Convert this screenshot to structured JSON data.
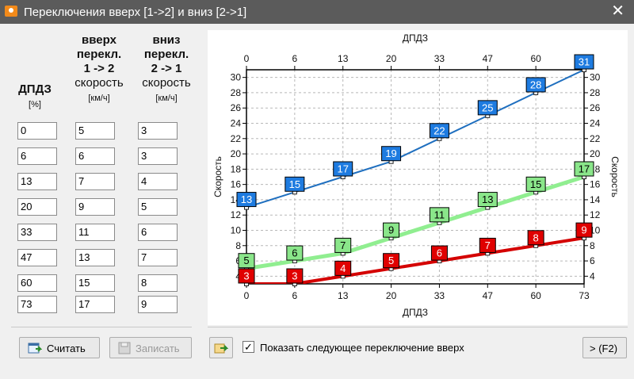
{
  "window": {
    "title": "Переключения вверх [1->2] и вниз [2->1]"
  },
  "headers": {
    "dpdz": "ДПДЗ",
    "dpdz_unit": "[%]",
    "up_line1": "вверх",
    "up_line2": "перекл.",
    "up_line3": "1 -> 2",
    "up_line4": "скорость",
    "up_unit": "[км/ч]",
    "down_line1": "вниз",
    "down_line2": "перекл.",
    "down_line3": "2 -> 1",
    "down_line4": "скорость",
    "down_unit": "[км/ч]"
  },
  "table": {
    "rows": [
      {
        "dpdz": "0",
        "up": "5",
        "down": "3"
      },
      {
        "dpdz": "6",
        "up": "6",
        "down": "3"
      },
      {
        "dpdz": "13",
        "up": "7",
        "down": "4"
      },
      {
        "dpdz": "20",
        "up": "9",
        "down": "5"
      },
      {
        "dpdz": "33",
        "up": "11",
        "down": "6"
      },
      {
        "dpdz": "47",
        "up": "13",
        "down": "7"
      },
      {
        "dpdz": "60",
        "up": "15",
        "down": "8"
      },
      {
        "dpdz": "73",
        "up": "17",
        "down": "9"
      }
    ]
  },
  "buttons": {
    "calculate": "Считать",
    "write": "Записать",
    "next": "> (F2)"
  },
  "options": {
    "show_next_label": "Показать следующее переключение вверх",
    "show_next_checked": true
  },
  "chart_data": {
    "type": "line",
    "xlabel_top": "ДПДЗ",
    "xlabel_bottom": "ДПДЗ",
    "ylabel_left": "Скорость",
    "ylabel_right": "Скорость",
    "categories": [
      "0",
      "6",
      "13",
      "20",
      "33",
      "47",
      "60",
      "73"
    ],
    "ylim": [
      3,
      31
    ],
    "yticks": [
      4,
      6,
      8,
      10,
      12,
      14,
      16,
      18,
      20,
      22,
      24,
      26,
      28,
      30
    ],
    "grid": true,
    "series": [
      {
        "color": "#1f6fbf",
        "label_bg": "#1e7be0",
        "label_fg": "#ffffff",
        "values": [
          13,
          15,
          17,
          19,
          22,
          25,
          28,
          31
        ]
      },
      {
        "color": "#90ee90",
        "label_bg": "#8ae68a",
        "label_fg": "#000000",
        "values": [
          5,
          6,
          7,
          9,
          11,
          13,
          15,
          17
        ]
      },
      {
        "color": "#d40000",
        "label_bg": "#e00000",
        "label_fg": "#ffffff",
        "values": [
          3,
          3,
          4,
          5,
          6,
          7,
          8,
          9
        ]
      }
    ]
  }
}
